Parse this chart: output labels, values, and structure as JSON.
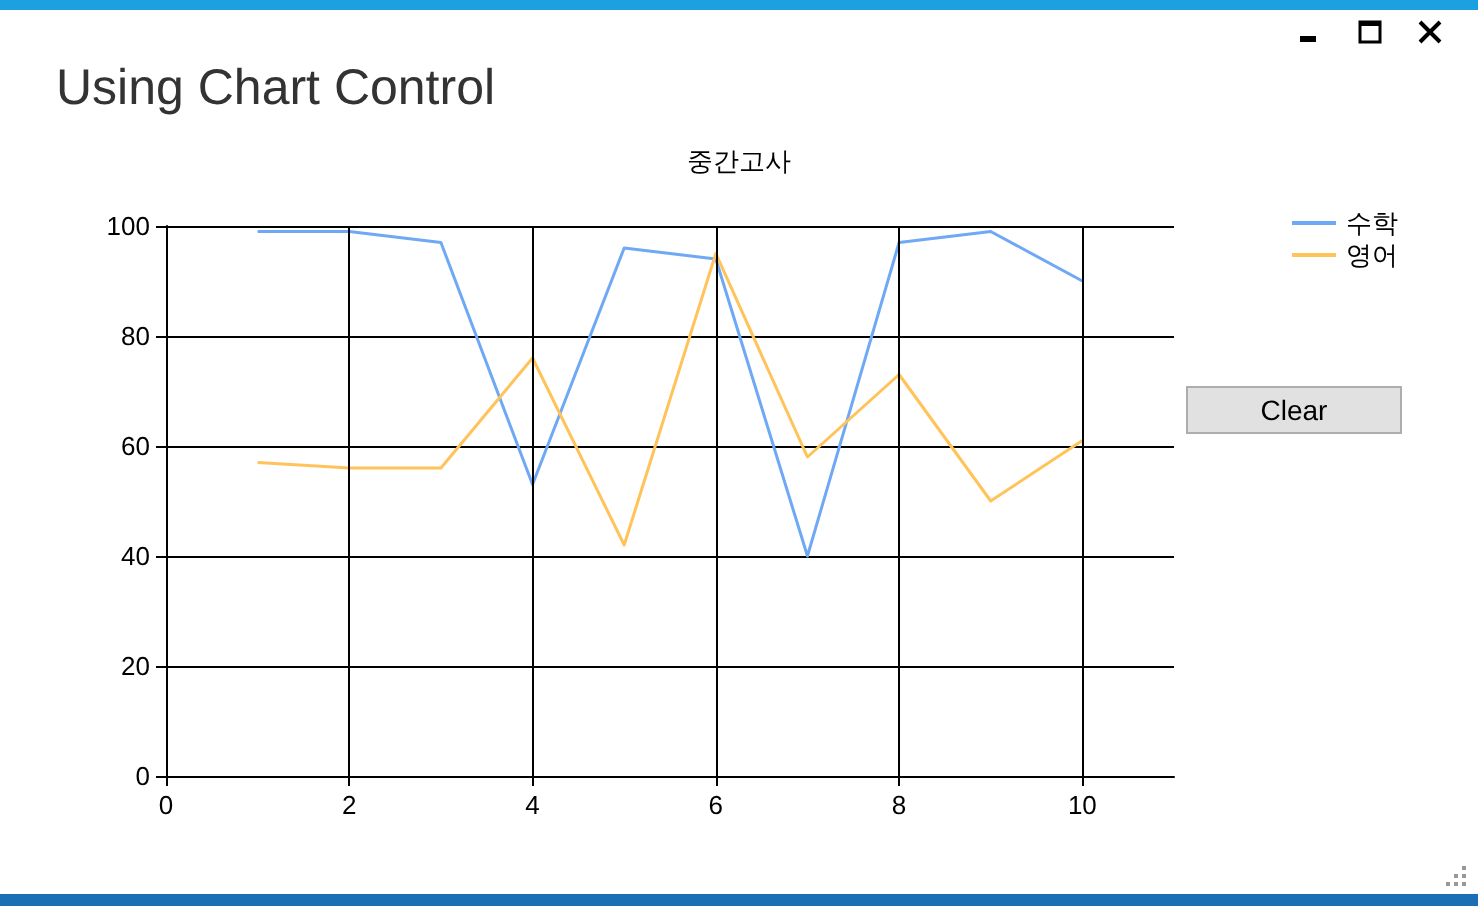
{
  "chart_data": {
    "type": "line",
    "title": "중간고사",
    "x": [
      1,
      2,
      3,
      4,
      5,
      6,
      7,
      8,
      9,
      10
    ],
    "series": [
      {
        "name": "수학",
        "color": "#6fa8f5",
        "values": [
          99,
          99,
          97,
          53,
          96,
          94,
          40,
          97,
          99,
          90
        ]
      },
      {
        "name": "영어",
        "color": "#ffc35a",
        "values": [
          57,
          56,
          56,
          76,
          42,
          95,
          58,
          73,
          50,
          61
        ]
      }
    ],
    "xlim": [
      0,
      11
    ],
    "xticks": [
      0,
      2,
      4,
      6,
      8,
      10
    ],
    "ylim": [
      0,
      100
    ],
    "yticks": [
      0,
      20,
      40,
      60,
      80,
      100
    ],
    "grid": true,
    "legend": "top right",
    "marker": "none",
    "line_style": "solid",
    "annotations": [
      "Using Chart Control",
      "Clear"
    ]
  }
}
